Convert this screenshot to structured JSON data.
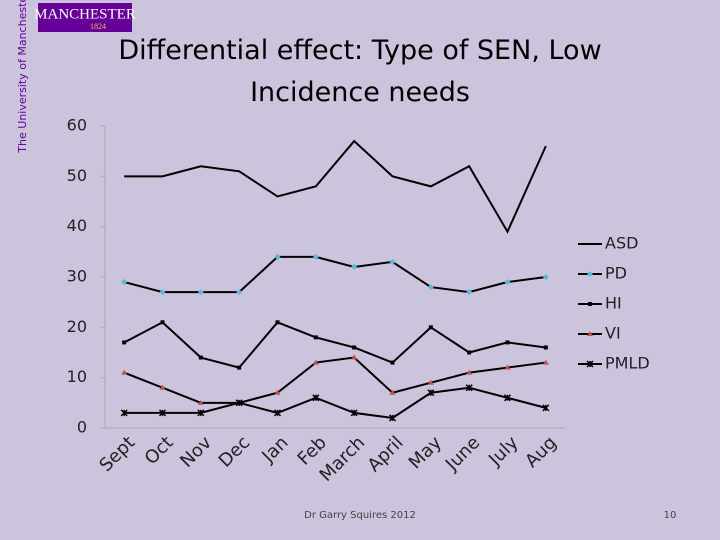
{
  "slide": {
    "logo": "MANCHESTER",
    "logo_year": "1824",
    "university": "The University of Manchester",
    "footer": "Dr Garry Squires 2012",
    "page_number": "10"
  },
  "chart_data": {
    "type": "line",
    "title": "Differential effect: Type of SEN, Low Incidence needs",
    "categories": [
      "Sept",
      "Oct",
      "Nov",
      "Dec",
      "Jan",
      "Feb",
      "March",
      "April",
      "May",
      "June",
      "July",
      "Aug"
    ],
    "series": [
      {
        "name": "ASD",
        "color": "#000000",
        "marker": "none",
        "marker_color": "#000000",
        "values": [
          50,
          50,
          52,
          51,
          46,
          48,
          57,
          50,
          48,
          52,
          39,
          56
        ]
      },
      {
        "name": "PD",
        "color": "#000000",
        "marker": "diamond",
        "marker_color": "#5bb8d6",
        "values": [
          29,
          27,
          27,
          27,
          34,
          34,
          32,
          33,
          28,
          27,
          29,
          30
        ]
      },
      {
        "name": "HI",
        "color": "#000000",
        "marker": "square",
        "marker_color": "#000000",
        "values": [
          17,
          21,
          14,
          12,
          21,
          18,
          16,
          13,
          20,
          15,
          17,
          16
        ]
      },
      {
        "name": "VI",
        "color": "#000000",
        "marker": "triangle",
        "marker_color": "#c0504d",
        "values": [
          11,
          8,
          5,
          5,
          7,
          13,
          14,
          7,
          9,
          11,
          12,
          13
        ]
      },
      {
        "name": "PMLD",
        "color": "#000000",
        "marker": "star",
        "marker_color": "#000000",
        "values": [
          3,
          3,
          3,
          5,
          3,
          6,
          3,
          2,
          7,
          8,
          6,
          4
        ]
      }
    ],
    "ylim": [
      0,
      60
    ],
    "yticks": [
      0,
      10,
      20,
      30,
      40,
      50,
      60
    ],
    "grid": false,
    "legend": "right"
  }
}
